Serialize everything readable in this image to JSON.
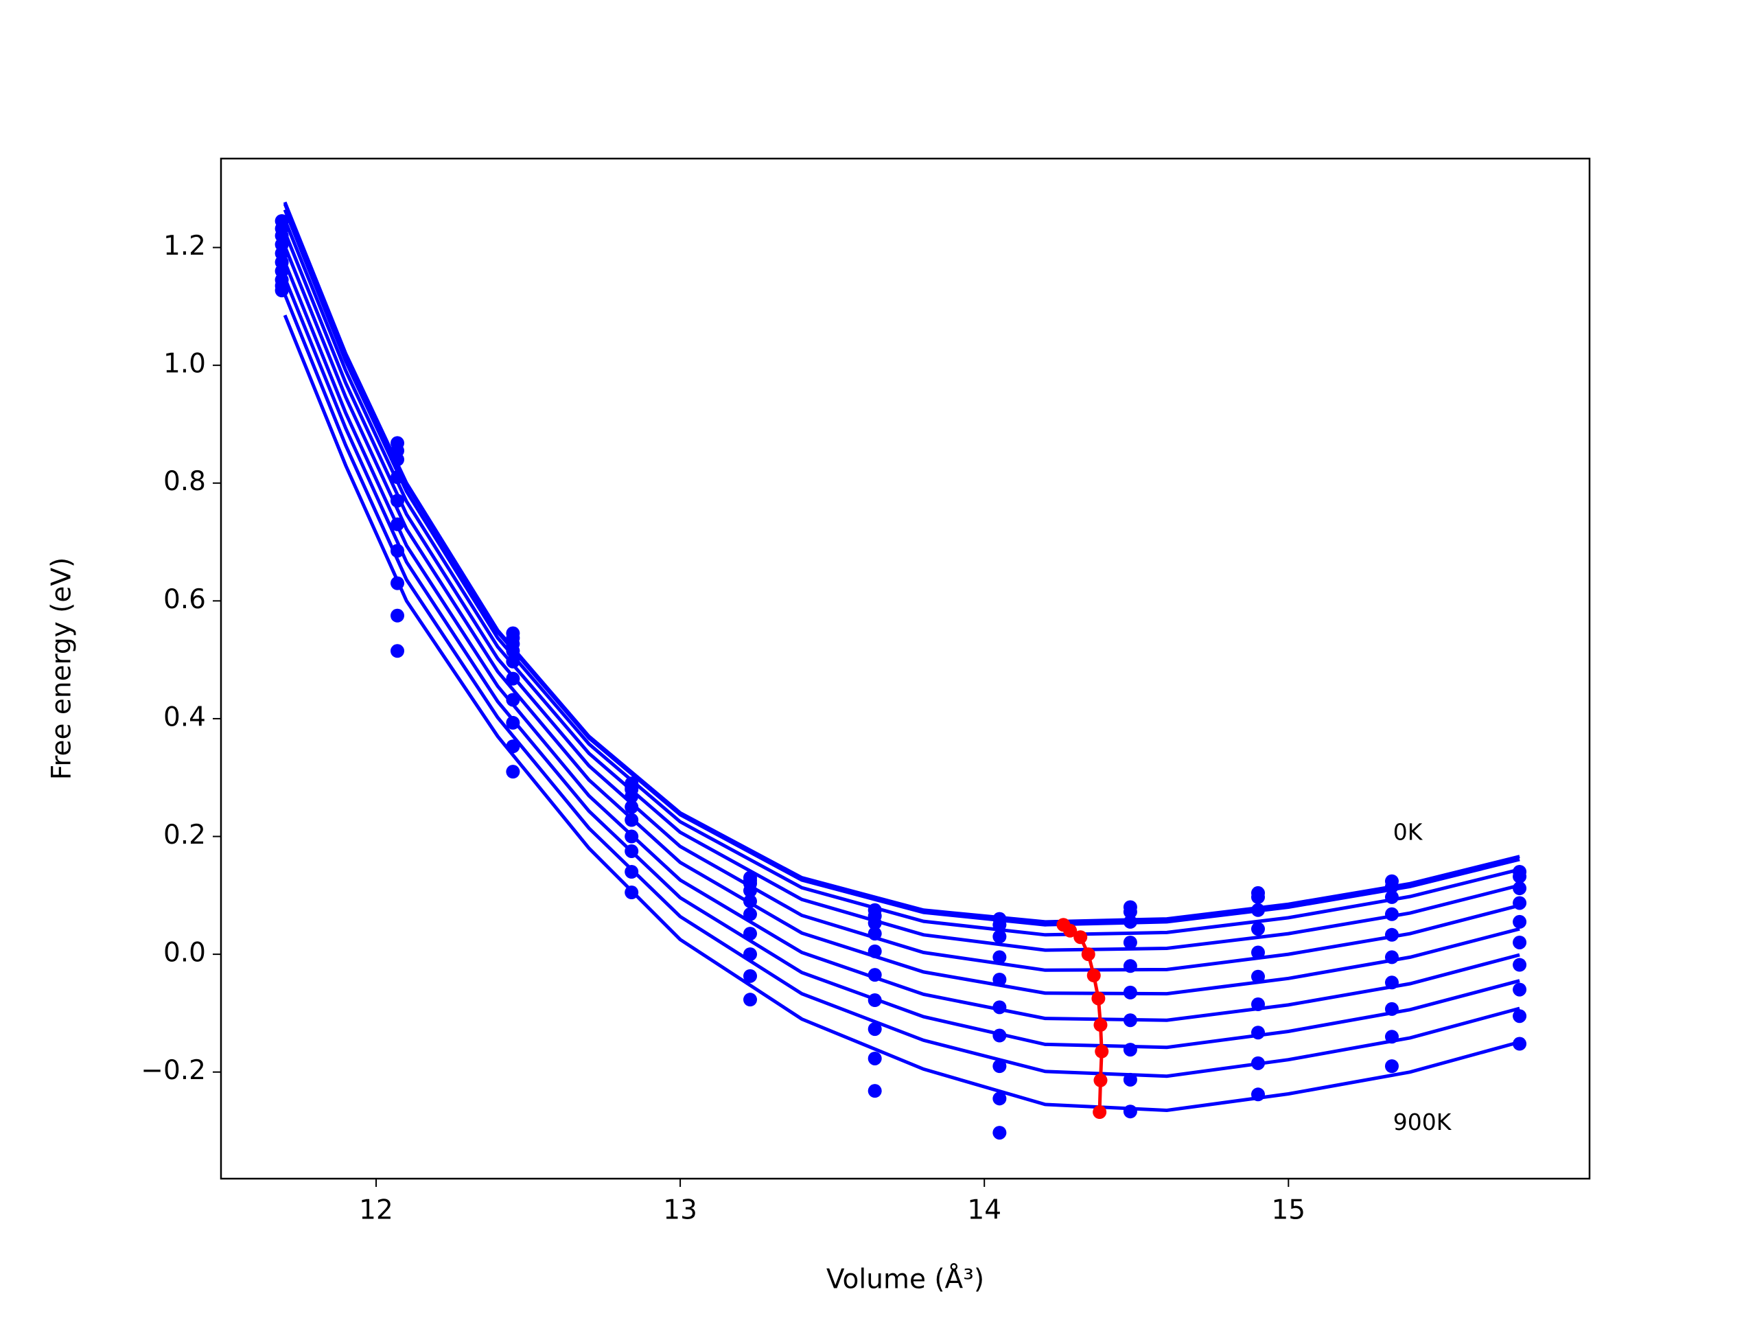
{
  "chart_data": {
    "type": "line",
    "xlabel": "Volume (Å³)",
    "ylabel": "Free energy (eV)",
    "xlim": [
      11.49,
      15.99
    ],
    "ylim": [
      -0.381,
      1.351
    ],
    "xticks": [
      12,
      13,
      14,
      15
    ],
    "yticks": [
      {
        "value": -0.2,
        "label": "−0.2"
      },
      {
        "value": 0,
        "label": "0.0"
      },
      0.2,
      0.4,
      0.6,
      0.8,
      {
        "value": 1,
        "label": "1.0"
      },
      1.2
    ],
    "x": [
      11.7,
      11.9,
      12.1,
      12.4,
      12.7,
      13.0,
      13.4,
      13.8,
      14.2,
      14.6,
      15.0,
      15.4,
      15.76
    ],
    "series": [
      {
        "color": "#0000ff",
        "values": [
          1.277,
          1.02,
          0.8,
          0.55,
          0.37,
          0.24,
          0.13,
          0.075,
          0.055,
          0.06,
          0.085,
          0.12,
          0.166
        ]
      },
      {
        "color": "#0000ff",
        "values": [
          1.274,
          1.017,
          0.797,
          0.547,
          0.367,
          0.237,
          0.126,
          0.071,
          0.05,
          0.055,
          0.08,
          0.115,
          0.161
        ]
      },
      {
        "color": "#0000ff",
        "values": [
          1.264,
          1.007,
          0.786,
          0.537,
          0.357,
          0.225,
          0.113,
          0.056,
          0.033,
          0.037,
          0.062,
          0.098,
          0.144
        ]
      },
      {
        "color": "#0000ff",
        "values": [
          1.247,
          0.991,
          0.769,
          0.522,
          0.341,
          0.207,
          0.093,
          0.033,
          0.007,
          0.01,
          0.035,
          0.07,
          0.117
        ]
      },
      {
        "color": "#0000ff",
        "values": [
          1.226,
          0.97,
          0.747,
          0.502,
          0.32,
          0.183,
          0.066,
          0.003,
          -0.027,
          -0.026,
          0.0,
          0.035,
          0.083
        ]
      },
      {
        "color": "#0000ff",
        "values": [
          1.202,
          0.946,
          0.722,
          0.48,
          0.296,
          0.156,
          0.036,
          -0.03,
          -0.066,
          -0.067,
          -0.041,
          -0.005,
          0.043
        ]
      },
      {
        "color": "#0000ff",
        "values": [
          1.175,
          0.919,
          0.694,
          0.455,
          0.269,
          0.126,
          0.003,
          -0.068,
          -0.109,
          -0.112,
          -0.086,
          -0.05,
          -0.001
        ]
      },
      {
        "color": "#0000ff",
        "values": [
          1.148,
          0.893,
          0.666,
          0.429,
          0.243,
          0.096,
          -0.031,
          -0.106,
          -0.153,
          -0.158,
          -0.131,
          -0.094,
          -0.045
        ]
      },
      {
        "color": "#0000ff",
        "values": [
          1.12,
          0.864,
          0.636,
          0.402,
          0.214,
          0.064,
          -0.067,
          -0.146,
          -0.199,
          -0.207,
          -0.179,
          -0.142,
          -0.092
        ]
      },
      {
        "color": "#0000ff",
        "values": [
          1.085,
          0.83,
          0.6,
          0.37,
          0.18,
          0.025,
          -0.11,
          -0.195,
          -0.255,
          -0.265,
          -0.237,
          -0.2,
          -0.149
        ]
      }
    ],
    "points": {
      "color": "#0000ff",
      "groups": [
        {
          "x": 11.69,
          "values": [
            1.245,
            1.232,
            1.22,
            1.205,
            1.19,
            1.175,
            1.16,
            1.145,
            1.135,
            1.127
          ]
        },
        {
          "x": 12.07,
          "values": [
            0.868,
            0.855,
            0.84,
            0.81,
            0.77,
            0.73,
            0.685,
            0.63,
            0.575,
            0.515
          ]
        },
        {
          "x": 12.45,
          "values": [
            0.537,
            0.527,
            0.515,
            0.497,
            0.468,
            0.432,
            0.393,
            0.353,
            0.31,
            0.545
          ]
        },
        {
          "x": 12.84,
          "values": [
            0.29,
            0.28,
            0.268,
            0.25,
            0.228,
            0.2,
            0.175,
            0.14,
            0.105,
            0.285
          ]
        },
        {
          "x": 13.23,
          "values": [
            0.13,
            0.12,
            0.108,
            0.09,
            0.068,
            0.035,
            0.0,
            -0.037,
            -0.077,
            0.125
          ]
        },
        {
          "x": 13.64,
          "values": [
            0.075,
            0.065,
            0.053,
            0.035,
            0.005,
            -0.035,
            -0.078,
            -0.127,
            -0.177,
            -0.232
          ]
        },
        {
          "x": 14.05,
          "values": [
            0.06,
            0.05,
            0.03,
            -0.005,
            -0.043,
            -0.09,
            -0.138,
            -0.19,
            -0.245,
            -0.303
          ]
        },
        {
          "x": 14.48,
          "values": [
            0.08,
            0.072,
            0.055,
            0.02,
            -0.02,
            -0.065,
            -0.112,
            -0.162,
            -0.213,
            -0.267
          ]
        },
        {
          "x": 14.9,
          "values": [
            0.104,
            0.097,
            0.075,
            0.043,
            0.003,
            -0.038,
            -0.085,
            -0.133,
            -0.185,
            -0.238
          ]
        },
        {
          "x": 15.34,
          "values": [
            0.124,
            0.115,
            0.097,
            0.068,
            0.033,
            -0.005,
            -0.048,
            -0.093,
            -0.14,
            -0.19
          ]
        },
        {
          "x": 15.76,
          "values": [
            0.14,
            0.132,
            0.112,
            0.087,
            0.055,
            0.02,
            -0.018,
            -0.06,
            -0.105,
            -0.152
          ]
        }
      ]
    },
    "minima": {
      "color": "#ff0000",
      "x": [
        14.26,
        14.282,
        14.316,
        14.342,
        14.36,
        14.375,
        14.382,
        14.386,
        14.382,
        14.379
      ],
      "values": [
        0.05,
        0.04,
        0.029,
        0.0,
        -0.036,
        -0.075,
        -0.12,
        -0.165,
        -0.214,
        -0.268
      ]
    },
    "annotations": [
      {
        "text": "0K",
        "x": 15.344,
        "y": 0.205
      },
      {
        "text": "900K",
        "x": 15.344,
        "y": -0.287
      }
    ]
  }
}
